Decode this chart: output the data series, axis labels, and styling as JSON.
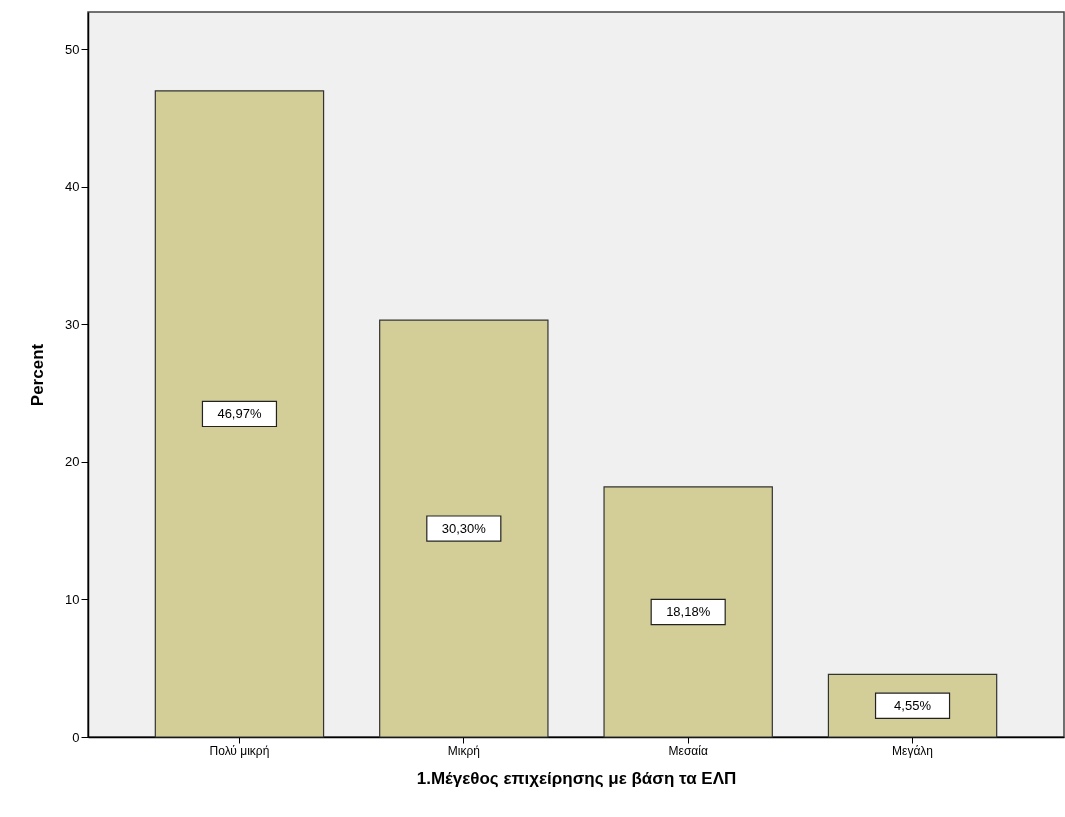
{
  "chart_data": {
    "type": "bar",
    "xlabel": "1.Μέγεθος επιχείρησης με βάση τα ΕΛΠ",
    "ylabel": "Percent",
    "categories": [
      "Πολύ μικρή",
      "Μικρή",
      "Μεσαία",
      "Μεγάλη"
    ],
    "values": [
      46.97,
      30.3,
      18.18,
      4.55
    ],
    "value_labels": [
      "46,97%",
      "30,30%",
      "18,18%",
      "4,55%"
    ],
    "color": "#d3ce97",
    "ylim": [
      0,
      52.7
    ],
    "yticks": [
      0,
      10,
      20,
      30,
      40,
      50
    ],
    "grid": false
  }
}
